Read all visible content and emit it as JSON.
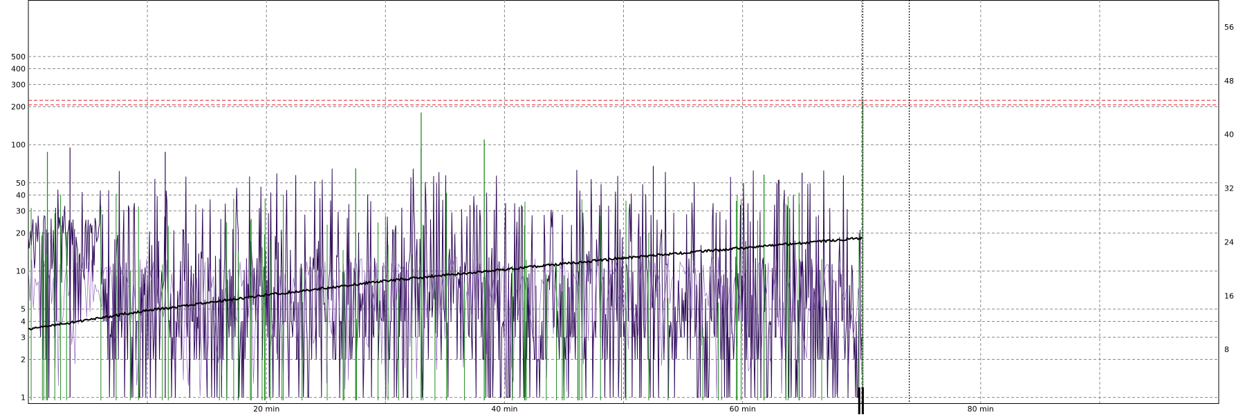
{
  "chart_data": {
    "type": "line",
    "title": "",
    "xlabel": "",
    "ylabel": "",
    "x_unit": "min",
    "xlim": [
      0,
      100
    ],
    "x_ticks": [
      {
        "value": 20,
        "label": "20 min"
      },
      {
        "value": 40,
        "label": "40 min"
      },
      {
        "value": 60,
        "label": "60 min"
      },
      {
        "value": 80,
        "label": "80 min"
      }
    ],
    "x_minor_gridlines": [
      10,
      30,
      50,
      70,
      90
    ],
    "left_axis": {
      "scale": "log",
      "ylim": [
        0.9,
        1400
      ],
      "ticks": [
        1,
        2,
        3,
        4,
        5,
        10,
        20,
        30,
        40,
        50,
        100,
        200,
        300,
        400,
        500
      ],
      "tick_labels": [
        "1",
        "2",
        "3",
        "4",
        "5",
        "10",
        "20",
        "30",
        "40",
        "50",
        "100",
        "200",
        "300",
        "400",
        "500"
      ]
    },
    "right_axis": {
      "scale": "linear",
      "ylim": [
        0,
        60
      ],
      "ticks": [
        8,
        16,
        24,
        32,
        40,
        48,
        56
      ],
      "tick_labels": [
        "8",
        "16",
        "24",
        "32",
        "40",
        "48",
        "56"
      ]
    },
    "grid": true,
    "legend": "none",
    "reference_lines": [
      {
        "axis": "left",
        "value": 225,
        "color": "#e0202a",
        "style": "dashed"
      },
      {
        "axis": "left",
        "value": 207,
        "color": "#e0202a",
        "style": "dashed"
      }
    ],
    "markers": [
      {
        "x": 70.1,
        "style": "dotted",
        "color": "#000000"
      },
      {
        "x": 74.0,
        "style": "dotted",
        "color": "#000000"
      },
      {
        "x": 69.8,
        "style": "solid-thick",
        "color": "#000000"
      },
      {
        "x": 70.1,
        "style": "solid-thick",
        "color": "#000000"
      }
    ],
    "colors": {
      "primary": "#2d0a56",
      "secondary": "#7a3fb0",
      "green": "#1e8c1e",
      "trend": "#000000"
    },
    "series": [
      {
        "axis": "right",
        "color": "#000000",
        "style": "thick-line",
        "x": [
          0,
          10,
          20,
          30,
          40,
          50,
          60,
          70
        ],
        "y": [
          11,
          13.8,
          16.1,
          18.2,
          19.9,
          21.6,
          23.1,
          24.6
        ]
      },
      {
        "axis": "left",
        "color": "#2d0a56",
        "style": "spike-line",
        "x_range": [
          0,
          70
        ],
        "typical_range": [
          1,
          60
        ],
        "peaks": [
          {
            "x": 3.5,
            "y": 95
          },
          {
            "x": 11.5,
            "y": 88
          },
          {
            "x": 33,
            "y": 95
          },
          {
            "x": 52.5,
            "y": 68
          },
          {
            "x": 65,
            "y": 60
          }
        ]
      },
      {
        "axis": "left",
        "color": "#1e8c1e",
        "style": "spike-line",
        "x_range": [
          0,
          70
        ],
        "peaks": [
          {
            "x": 1.6,
            "y": 88
          },
          {
            "x": 27.5,
            "y": 65
          },
          {
            "x": 33,
            "y": 180
          },
          {
            "x": 38.3,
            "y": 110
          },
          {
            "x": 61.8,
            "y": 58
          },
          {
            "x": 70.1,
            "y": 230
          }
        ]
      }
    ]
  }
}
